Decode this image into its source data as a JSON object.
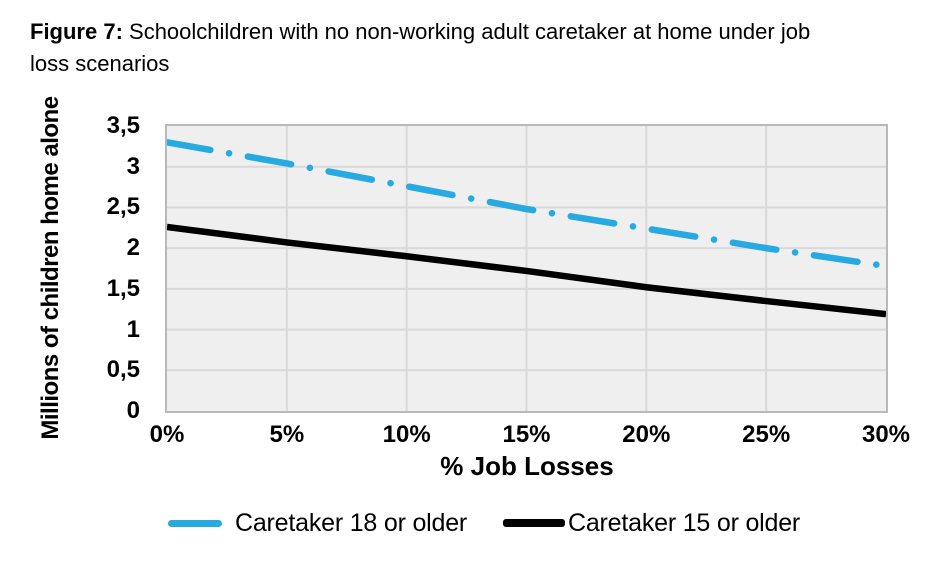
{
  "figure": {
    "title_bold_prefix": "Figure 7:",
    "title_line1_rest": " Schoolchildren with no non-working adult caretaker at home under job",
    "title_line2": "loss scenarios"
  },
  "colors": {
    "caretaker_18_line": "#27a9e1",
    "caretaker_15_line": "#000000",
    "plot_background": "#efefef",
    "gridline": "#d9d9d9",
    "plot_border": "#b9b9b9"
  },
  "chart_data": {
    "type": "line",
    "title": "Schoolchildren with no non-working adult caretaker at home under job loss scenarios",
    "xlabel": "% Job Losses",
    "ylabel": "Millions of children home alone",
    "x": [
      0,
      5,
      10,
      15,
      20,
      25,
      30
    ],
    "x_tick_labels": [
      "0%",
      "5%",
      "10%",
      "15%",
      "20%",
      "25%",
      "30%"
    ],
    "y_tick_labels": [
      "0",
      "0,5",
      "1",
      "1,5",
      "2",
      "2,5",
      "3",
      "3,5"
    ],
    "xlim": [
      0,
      30
    ],
    "ylim": [
      0,
      3.5
    ],
    "y_tick_step": 0.5,
    "grid": true,
    "legend_position": "bottom",
    "series": [
      {
        "name": "Caretaker 18 or older",
        "color": "#27a9e1",
        "style": "dash-dot",
        "values": [
          3.3,
          3.04,
          2.76,
          2.48,
          2.24,
          2.0,
          1.78
        ]
      },
      {
        "name": "Caretaker 15 or older",
        "color": "#000000",
        "style": "solid",
        "values": [
          2.26,
          2.07,
          1.9,
          1.72,
          1.52,
          1.35,
          1.19
        ]
      }
    ]
  }
}
